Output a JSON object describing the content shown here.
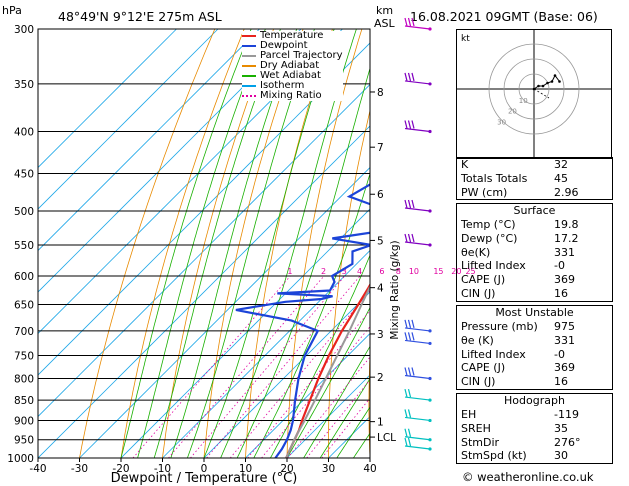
{
  "header": {
    "hpa_label": "hPa",
    "location": "48°49'N  9°12'E  275m  ASL",
    "km_label": "km",
    "asl_label": "ASL",
    "datetime": "16.08.2021  09GMT  (Base: 06)"
  },
  "legend": [
    {
      "label": "Temperature",
      "color": "#e8231e"
    },
    {
      "label": "Dewpoint",
      "color": "#1c44d8"
    },
    {
      "label": "Parcel Trajectory",
      "color": "#999999"
    },
    {
      "label": "Dry Adiabat",
      "color": "#e88a00"
    },
    {
      "label": "Wet Adiabat",
      "color": "#18b000"
    },
    {
      "label": "Isotherm",
      "color": "#00a0e8"
    },
    {
      "label": "Mixing Ratio",
      "color": "#e000a0"
    }
  ],
  "chart_data": {
    "type": "line",
    "title": "",
    "xlabel": "Dewpoint / Temperature (°C)",
    "ylabel": "",
    "right_axis_label": "Mixing Ratio (g/kg)",
    "pressure_ticks": [
      300,
      350,
      400,
      450,
      500,
      550,
      600,
      650,
      700,
      750,
      800,
      850,
      900,
      950,
      1000
    ],
    "temp_ticks": [
      -40,
      -30,
      -20,
      -10,
      0,
      10,
      20,
      30,
      40
    ],
    "xlim": [
      -40,
      40
    ],
    "ylim": [
      1000,
      300
    ],
    "skew": "skew-T log-p",
    "km_ticks": [
      {
        "label": "8",
        "p": 358
      },
      {
        "label": "7",
        "p": 418
      },
      {
        "label": "6",
        "p": 477
      },
      {
        "label": "5",
        "p": 543
      },
      {
        "label": "4",
        "p": 620
      },
      {
        "label": "3",
        "p": 706
      },
      {
        "label": "2",
        "p": 797
      },
      {
        "label": "1",
        "p": 903
      },
      {
        "label": "LCL",
        "p": 943
      }
    ],
    "mixing_ratio_labels": [
      "1",
      "2",
      "3",
      "4",
      "6",
      "8",
      "10",
      "15",
      "20",
      "25"
    ],
    "series": [
      {
        "name": "Temperature",
        "color": "#e8231e",
        "points": [
          [
            1000,
            19.8
          ],
          [
            975,
            18.6
          ],
          [
            950,
            17.4
          ],
          [
            925,
            16.2
          ],
          [
            900,
            14.6
          ],
          [
            850,
            11.6
          ],
          [
            800,
            8.4
          ],
          [
            750,
            5.4
          ],
          [
            700,
            2.6
          ],
          [
            650,
            0.2
          ],
          [
            620,
            -1.4
          ],
          [
            600,
            -2.6
          ],
          [
            550,
            -5.6
          ],
          [
            500,
            -9.4
          ],
          [
            450,
            -14.2
          ],
          [
            400,
            -20.0
          ],
          [
            350,
            -26.8
          ],
          [
            300,
            -35.0
          ]
        ]
      },
      {
        "name": "Dewpoint",
        "color": "#1c44d8",
        "points": [
          [
            1000,
            17.2
          ],
          [
            975,
            16.6
          ],
          [
            950,
            15.6
          ],
          [
            925,
            14.2
          ],
          [
            900,
            12.4
          ],
          [
            850,
            8.0
          ],
          [
            800,
            3.6
          ],
          [
            750,
            -0.4
          ],
          [
            700,
            -3.2
          ],
          [
            680,
            -12
          ],
          [
            660,
            -28
          ],
          [
            645,
            -18
          ],
          [
            640,
            -10
          ],
          [
            635,
            -8
          ],
          [
            630,
            -22
          ],
          [
            625,
            -10
          ],
          [
            610,
            -11
          ],
          [
            600,
            -13
          ],
          [
            580,
            -11
          ],
          [
            560,
            -14
          ],
          [
            550,
            -11
          ],
          [
            540,
            -22
          ],
          [
            530,
            -13
          ],
          [
            520,
            -15
          ],
          [
            500,
            -15
          ],
          [
            480,
            -28
          ],
          [
            450,
            -24
          ],
          [
            420,
            -19
          ],
          [
            400,
            -29
          ],
          [
            370,
            -38
          ],
          [
            340,
            -37
          ],
          [
            330,
            -48
          ],
          [
            310,
            -42
          ],
          [
            300,
            -45
          ]
        ]
      },
      {
        "name": "Parcel Trajectory",
        "color": "#999999",
        "points": [
          [
            1000,
            19.8
          ],
          [
            943,
            17.0
          ],
          [
            900,
            15.2
          ],
          [
            850,
            12.8
          ],
          [
            800,
            10.2
          ],
          [
            750,
            7.4
          ],
          [
            700,
            4.4
          ],
          [
            650,
            1.0
          ],
          [
            600,
            -2.6
          ],
          [
            550,
            -6.6
          ],
          [
            500,
            -11.0
          ],
          [
            450,
            -16.0
          ],
          [
            400,
            -21.8
          ],
          [
            350,
            -28.6
          ],
          [
            300,
            -36.8
          ]
        ]
      }
    ]
  },
  "hodograph": {
    "unit_label": "kt",
    "ring_labels": [
      "10",
      "20",
      "30"
    ],
    "trace": [
      [
        0,
        0
      ],
      [
        3,
        2
      ],
      [
        6,
        2
      ],
      [
        9,
        4
      ],
      [
        12,
        5
      ],
      [
        14,
        9
      ],
      [
        17,
        5
      ]
    ],
    "storm_motion": [
      10,
      -6
    ]
  },
  "winds": [
    {
      "p": 300,
      "color": "#c000c0",
      "barbs": 3
    },
    {
      "p": 350,
      "color": "#8000c0",
      "barbs": 3
    },
    {
      "p": 400,
      "color": "#8000c0",
      "barbs": 3
    },
    {
      "p": 500,
      "color": "#8000c0",
      "barbs": 3
    },
    {
      "p": 550,
      "color": "#8000c0",
      "barbs": 3
    },
    {
      "p": 700,
      "color": "#3050e0",
      "barbs": 3
    },
    {
      "p": 725,
      "color": "#3050e0",
      "barbs": 3
    },
    {
      "p": 800,
      "color": "#3050e0",
      "barbs": 3
    },
    {
      "p": 850,
      "color": "#00c0c0",
      "barbs": 2
    },
    {
      "p": 900,
      "color": "#00c0c0",
      "barbs": 2
    },
    {
      "p": 950,
      "color": "#00c0c0",
      "barbs": 2
    },
    {
      "p": 975,
      "color": "#00c0c0",
      "barbs": 2
    }
  ],
  "indices": [
    {
      "label": "K",
      "value": "32"
    },
    {
      "label": "Totals Totals",
      "value": "45"
    },
    {
      "label": "PW (cm)",
      "value": "2.96"
    }
  ],
  "surface": {
    "title": "Surface",
    "rows": [
      {
        "label": "Temp (°C)",
        "value": "19.8"
      },
      {
        "label": "Dewp (°C)",
        "value": "17.2"
      },
      {
        "label": "θe(K)",
        "value": "331"
      },
      {
        "label": "Lifted Index",
        "value": "-0"
      },
      {
        "label": "CAPE (J)",
        "value": "369"
      },
      {
        "label": "CIN (J)",
        "value": "16"
      }
    ]
  },
  "most_unstable": {
    "title": "Most Unstable",
    "rows": [
      {
        "label": "Pressure (mb)",
        "value": "975"
      },
      {
        "label": "θe (K)",
        "value": "331"
      },
      {
        "label": "Lifted Index",
        "value": "-0"
      },
      {
        "label": "CAPE (J)",
        "value": "369"
      },
      {
        "label": "CIN (J)",
        "value": "16"
      }
    ]
  },
  "hodograph_table": {
    "title": "Hodograph",
    "rows": [
      {
        "label": "EH",
        "value": "-119"
      },
      {
        "label": "SREH",
        "value": "35"
      },
      {
        "label": "StmDir",
        "value": "276°"
      },
      {
        "label": "StmSpd (kt)",
        "value": "30"
      }
    ]
  },
  "footer": {
    "copyright": "© weatheronline.co.uk"
  }
}
